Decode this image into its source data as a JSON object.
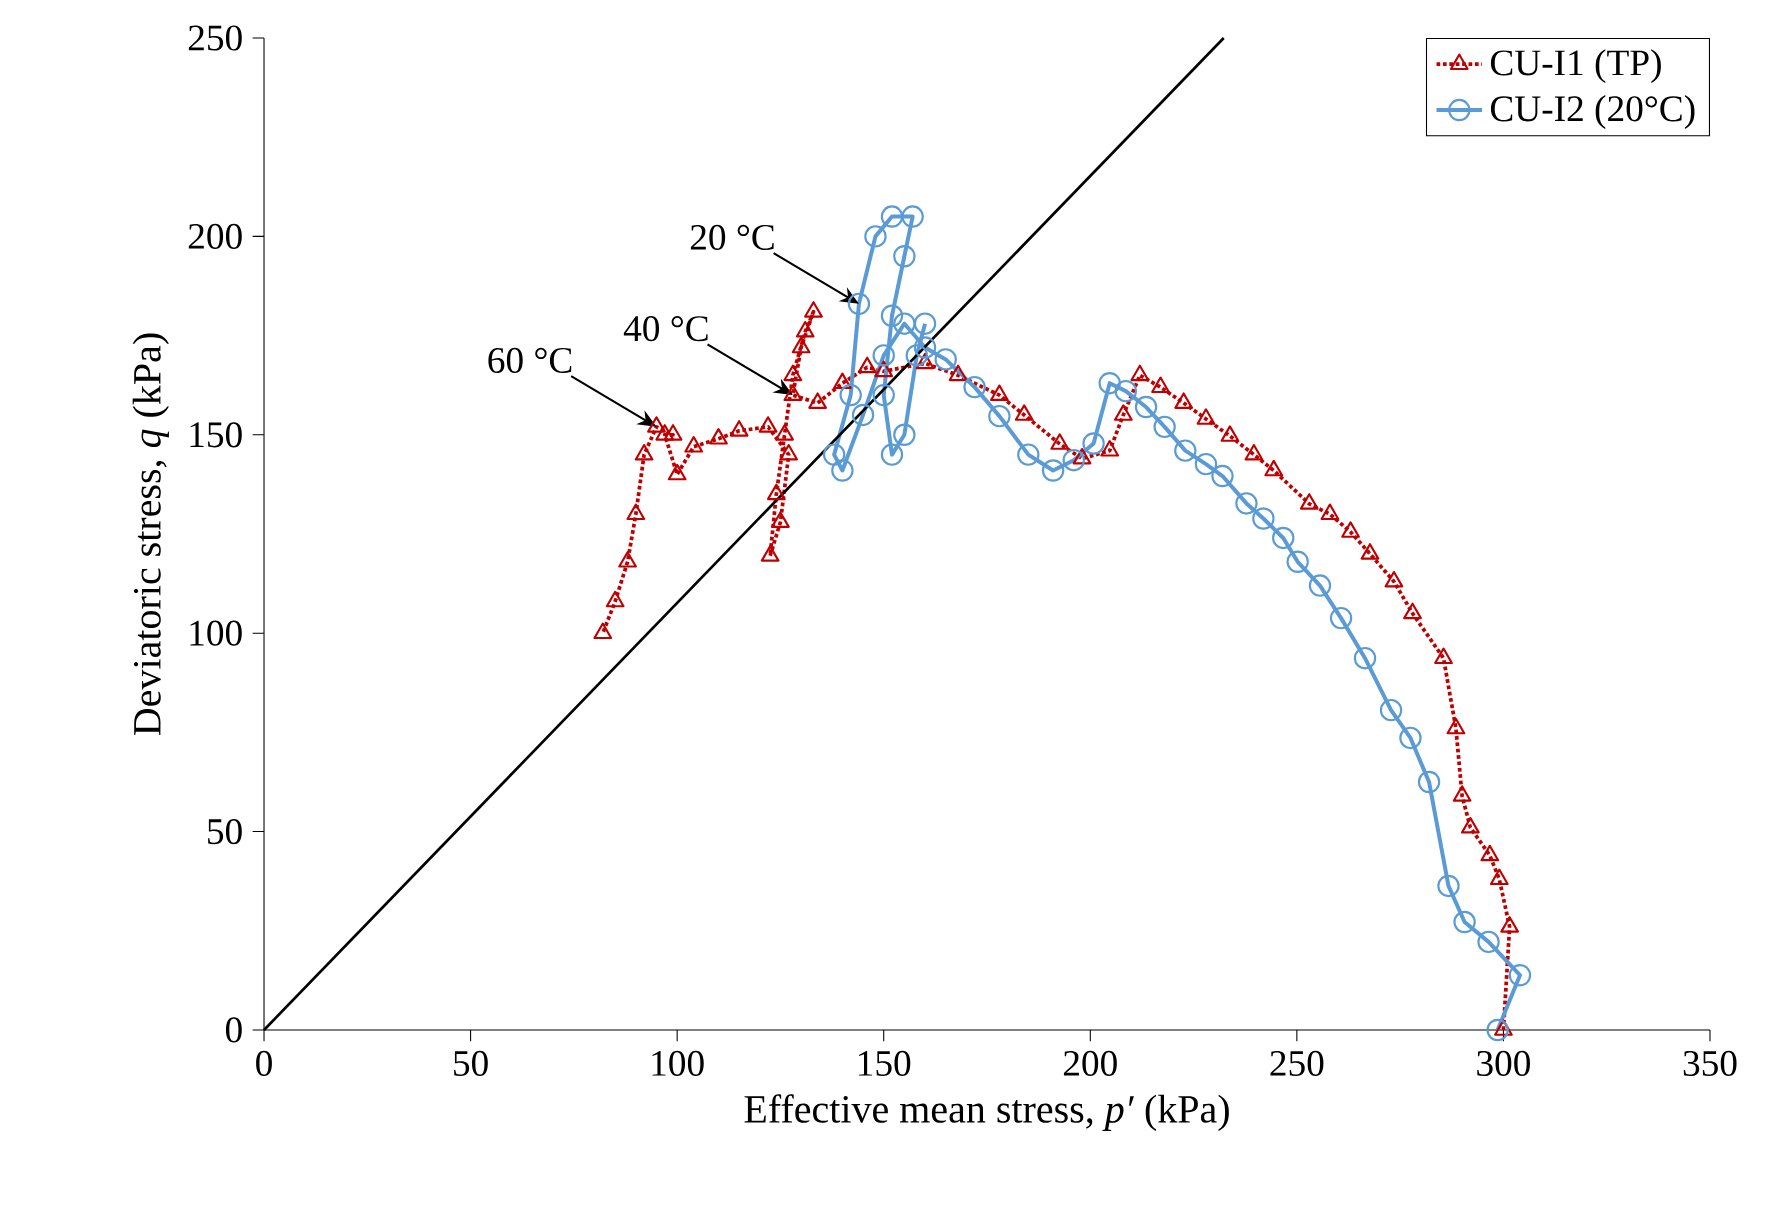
{
  "chart_data": {
    "type": "line",
    "xlabel": "Effective mean stress, *p′* (kPa)",
    "ylabel": "Deviatoric stress, *q* (kPa)",
    "xlim": [
      0,
      350
    ],
    "ylim": [
      0,
      250
    ],
    "xticks": [
      0,
      50,
      100,
      150,
      200,
      250,
      300,
      350
    ],
    "yticks": [
      0,
      50,
      100,
      150,
      200,
      250
    ],
    "legend": "top right",
    "grid": false,
    "annotations": [
      {
        "text": "60 °C",
        "x": 95,
        "y": 152
      },
      {
        "text": "40 °C",
        "x": 128,
        "y": 160
      },
      {
        "text": "20 °C",
        "x": 144,
        "y": 183
      }
    ],
    "series": [
      {
        "name": "CU-I1 (TP)",
        "color": "#c00000",
        "marker": "triangle",
        "line_style": "dotted",
        "x": [
          300,
          301.5,
          299,
          296.7,
          292,
          290,
          288.5,
          285.5,
          278,
          273.5,
          267.7,
          263,
          258,
          253,
          244.4,
          239.6,
          233.8,
          228,
          222.6,
          217,
          212,
          208,
          204.7,
          198,
          192.6,
          184,
          178,
          168,
          160,
          150,
          146,
          140,
          134,
          128,
          130,
          133,
          131,
          128,
          126,
          124,
          122.5,
          125,
          127,
          122,
          115,
          110,
          104,
          100,
          97,
          99,
          95,
          92,
          90,
          88,
          85,
          82
        ],
        "values": [
          0,
          26,
          38,
          44,
          51,
          59,
          76,
          93.7,
          105,
          113,
          120,
          125.5,
          130,
          132.6,
          141,
          145,
          149.7,
          154,
          158,
          162,
          165,
          155,
          146,
          144,
          147.7,
          155,
          160,
          165,
          168,
          166,
          167,
          163,
          158,
          160,
          172,
          181,
          176,
          165,
          150,
          135,
          119.5,
          128,
          145,
          152,
          151,
          149,
          147,
          140,
          150,
          150,
          152,
          145,
          130,
          118,
          108,
          100
        ]
      },
      {
        "name": "CU-I2 (20°C)",
        "color": "#5b9bd5",
        "marker": "circle",
        "line_style": "solid",
        "x": [
          298.6,
          304,
          296.4,
          290.6,
          286.7,
          282,
          277.5,
          272.8,
          266.5,
          260.7,
          255.6,
          250.2,
          246.7,
          241.9,
          237.8,
          232,
          228,
          223,
          218,
          213.5,
          208.6,
          204.7,
          200.8,
          196,
          191,
          185,
          178,
          172,
          165,
          160,
          155,
          150,
          145,
          140,
          138,
          142,
          144,
          148,
          152,
          157,
          155,
          152,
          150,
          152,
          155,
          158,
          160
        ],
        "values": [
          0,
          13.8,
          22.2,
          27.2,
          36.3,
          62.5,
          73.6,
          80.6,
          93.7,
          103.8,
          112,
          118,
          124,
          128.9,
          132.7,
          139.6,
          142.6,
          146,
          152,
          157,
          161,
          163,
          147.8,
          143.6,
          141,
          145,
          154.7,
          162,
          169,
          172,
          178,
          170,
          155,
          141,
          145,
          160,
          183,
          200,
          205,
          205,
          195,
          180,
          160,
          145,
          150,
          170,
          178
        ]
      },
      {
        "color": "#000000",
        "marker": "none",
        "line_style": "solid",
        "x": [
          0,
          232.3
        ],
        "values": [
          0,
          250
        ]
      }
    ]
  }
}
